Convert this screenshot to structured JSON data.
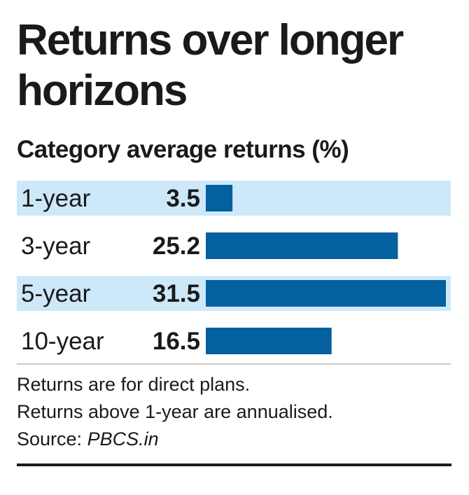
{
  "colors": {
    "bar": "#04609f",
    "band": "#cde8f8",
    "separator": "#c9c9c9",
    "text": "#1a1a1a"
  },
  "footnotes": {
    "line1": "Returns are for direct plans.",
    "line2": "Returns above 1-year are annualised.",
    "source_label": "Source: ",
    "source_name": "PBCS.in"
  },
  "chart_data": {
    "type": "bar",
    "orientation": "horizontal",
    "title": "Returns over longer horizons",
    "subtitle": "Category average returns (%)",
    "categories": [
      "1-year",
      "3-year",
      "5-year",
      "10-year"
    ],
    "values": [
      3.5,
      25.2,
      31.5,
      16.5
    ],
    "value_labels": [
      "3.5",
      "25.2",
      "31.5",
      "16.5"
    ],
    "xlim": [
      0,
      31.5
    ],
    "grid": false,
    "legend": "none"
  }
}
